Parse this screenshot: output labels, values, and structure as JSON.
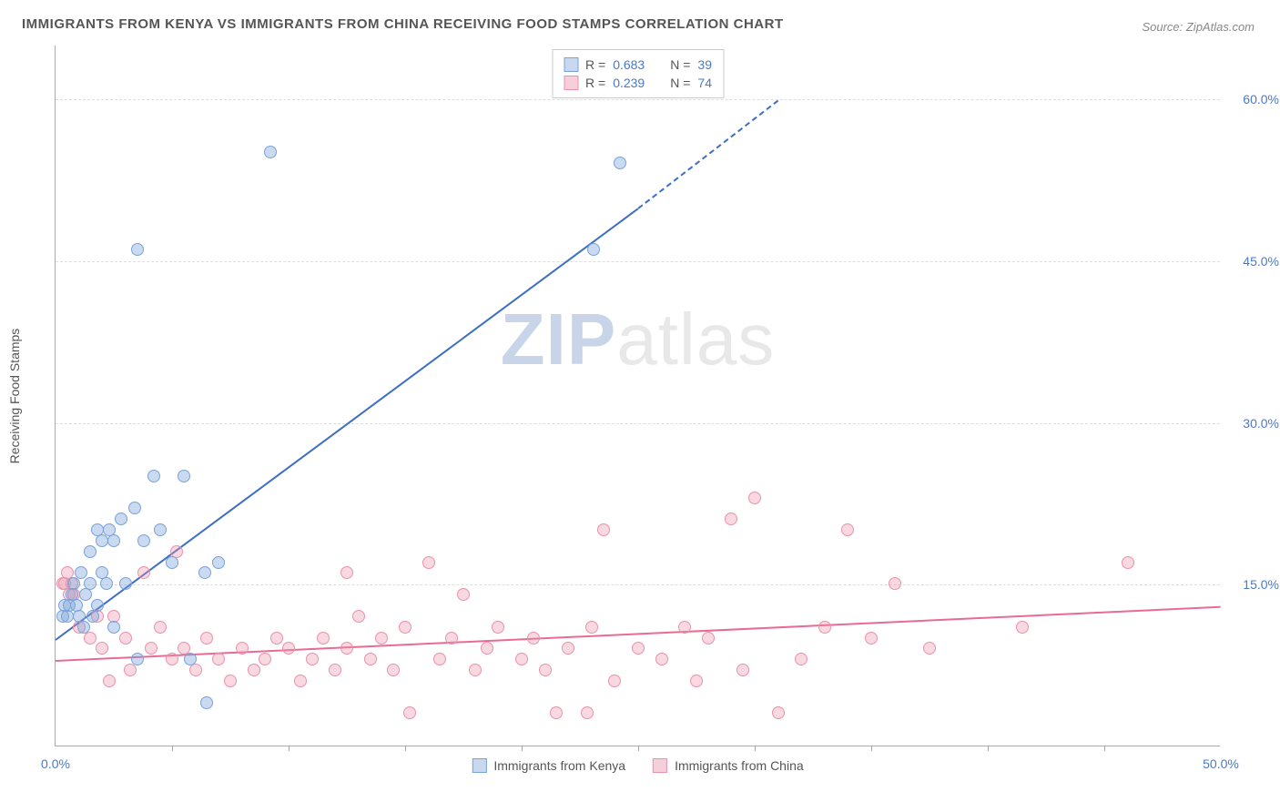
{
  "title": "IMMIGRANTS FROM KENYA VS IMMIGRANTS FROM CHINA RECEIVING FOOD STAMPS CORRELATION CHART",
  "source": "Source: ZipAtlas.com",
  "watermark": {
    "part1": "ZIP",
    "part2": "atlas"
  },
  "chart": {
    "type": "scatter",
    "background_color": "#ffffff",
    "grid_color": "#dddddd",
    "axis_color": "#aaaaaa",
    "xlim": [
      0,
      50
    ],
    "ylim": [
      0,
      65
    ],
    "y_axis_title": "Receiving Food Stamps",
    "y_ticks": [
      {
        "value": 15,
        "label": "15.0%"
      },
      {
        "value": 30,
        "label": "30.0%"
      },
      {
        "value": 45,
        "label": "45.0%"
      },
      {
        "value": 60,
        "label": "60.0%"
      }
    ],
    "y_label_color": "#4a7ac7",
    "y_label_fontsize": 14,
    "x_tick_label_start": "0.0%",
    "x_tick_label_end": "50.0%",
    "x_minor_ticks": [
      5,
      10,
      15,
      20,
      25,
      30,
      35,
      40,
      45
    ],
    "marker_radius": 7,
    "marker_stroke_width": 1,
    "series": {
      "kenya": {
        "label": "Immigrants from Kenya",
        "fill_color": "rgba(122,162,217,0.4)",
        "stroke_color": "#7aa2d9",
        "swatch_fill": "#c8d8ef",
        "swatch_border": "#7aa2d9",
        "R": "0.683",
        "N": "39",
        "trend": {
          "x1": 0,
          "y1": 10,
          "x2": 25,
          "y2": 50,
          "dash_x2": 31,
          "dash_y2": 60,
          "color": "#3b6fc4",
          "width": 2
        },
        "points": [
          [
            0.3,
            12
          ],
          [
            0.4,
            13
          ],
          [
            0.5,
            12
          ],
          [
            0.6,
            13
          ],
          [
            0.7,
            14
          ],
          [
            0.8,
            15
          ],
          [
            0.9,
            13
          ],
          [
            1.0,
            12
          ],
          [
            1.1,
            16
          ],
          [
            1.2,
            11
          ],
          [
            1.3,
            14
          ],
          [
            1.5,
            15
          ],
          [
            1.6,
            12
          ],
          [
            1.8,
            13
          ],
          [
            2.0,
            16
          ],
          [
            2.2,
            15
          ],
          [
            2.5,
            11
          ],
          [
            1.5,
            18
          ],
          [
            1.8,
            20
          ],
          [
            2.0,
            19
          ],
          [
            2.3,
            20
          ],
          [
            2.5,
            19
          ],
          [
            2.8,
            21
          ],
          [
            3.0,
            15
          ],
          [
            3.4,
            22
          ],
          [
            3.8,
            19
          ],
          [
            4.2,
            25
          ],
          [
            4.5,
            20
          ],
          [
            5.5,
            25
          ],
          [
            5.0,
            17
          ],
          [
            6.4,
            16
          ],
          [
            7.0,
            17
          ],
          [
            3.5,
            8
          ],
          [
            5.8,
            8
          ],
          [
            6.5,
            4
          ],
          [
            3.5,
            46
          ],
          [
            9.2,
            55
          ],
          [
            23.1,
            46
          ],
          [
            24.2,
            54
          ]
        ]
      },
      "china": {
        "label": "Immigrants from China",
        "fill_color": "rgba(235,145,170,0.35)",
        "stroke_color": "#eb91aa",
        "swatch_fill": "#f5d0da",
        "swatch_border": "#eb91aa",
        "R": "0.239",
        "N": "74",
        "trend": {
          "x1": 0,
          "y1": 8,
          "x2": 50,
          "y2": 13,
          "color": "#e86b94",
          "width": 2
        },
        "points": [
          [
            0.3,
            15
          ],
          [
            0.4,
            15
          ],
          [
            0.5,
            16
          ],
          [
            0.6,
            14
          ],
          [
            0.7,
            15
          ],
          [
            0.8,
            14
          ],
          [
            1.0,
            11
          ],
          [
            1.5,
            10
          ],
          [
            1.8,
            12
          ],
          [
            2.0,
            9
          ],
          [
            2.5,
            12
          ],
          [
            3.0,
            10
          ],
          [
            2.3,
            6
          ],
          [
            3.2,
            7
          ],
          [
            3.8,
            16
          ],
          [
            4.1,
            9
          ],
          [
            4.5,
            11
          ],
          [
            5.0,
            8
          ],
          [
            5.5,
            9
          ],
          [
            6.0,
            7
          ],
          [
            6.5,
            10
          ],
          [
            7.0,
            8
          ],
          [
            5.2,
            18
          ],
          [
            7.5,
            6
          ],
          [
            8.0,
            9
          ],
          [
            8.5,
            7
          ],
          [
            9.0,
            8
          ],
          [
            9.5,
            10
          ],
          [
            10.0,
            9
          ],
          [
            10.5,
            6
          ],
          [
            11.0,
            8
          ],
          [
            11.5,
            10
          ],
          [
            12.0,
            7
          ],
          [
            12.5,
            9
          ],
          [
            13.0,
            12
          ],
          [
            13.5,
            8
          ],
          [
            14.0,
            10
          ],
          [
            12.5,
            16
          ],
          [
            14.5,
            7
          ],
          [
            15.0,
            11
          ],
          [
            15.2,
            3
          ],
          [
            16.0,
            17
          ],
          [
            16.5,
            8
          ],
          [
            17.0,
            10
          ],
          [
            17.5,
            14
          ],
          [
            18.0,
            7
          ],
          [
            18.5,
            9
          ],
          [
            19.0,
            11
          ],
          [
            20.0,
            8
          ],
          [
            20.5,
            10
          ],
          [
            21.0,
            7
          ],
          [
            21.5,
            3
          ],
          [
            22.0,
            9
          ],
          [
            22.8,
            3
          ],
          [
            23.0,
            11
          ],
          [
            24.0,
            6
          ],
          [
            25.0,
            9
          ],
          [
            23.5,
            20
          ],
          [
            26.0,
            8
          ],
          [
            27.0,
            11
          ],
          [
            27.5,
            6
          ],
          [
            28.0,
            10
          ],
          [
            29.0,
            21
          ],
          [
            29.5,
            7
          ],
          [
            30.0,
            23
          ],
          [
            31.0,
            3
          ],
          [
            32.0,
            8
          ],
          [
            33.0,
            11
          ],
          [
            34.0,
            20
          ],
          [
            35.0,
            10
          ],
          [
            36.0,
            15
          ],
          [
            37.5,
            9
          ],
          [
            41.5,
            11
          ],
          [
            46.0,
            17
          ]
        ]
      }
    },
    "legend_top": {
      "R_label": "R =",
      "N_label": "N ="
    }
  }
}
